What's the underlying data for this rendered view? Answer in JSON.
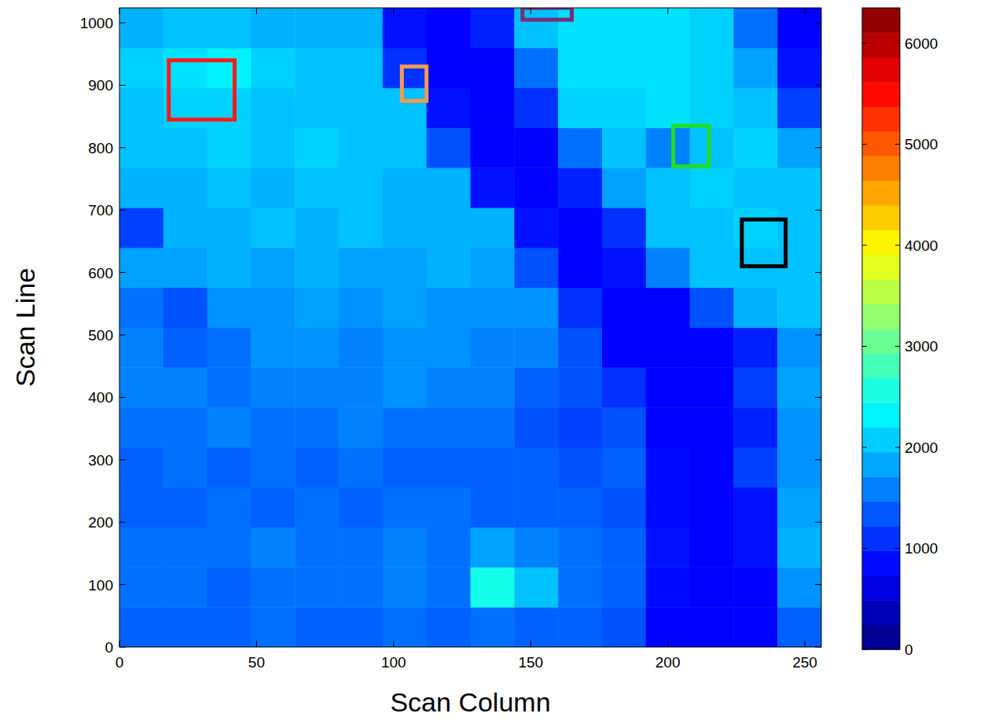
{
  "chart_data": {
    "type": "heatmap",
    "xlabel": "Scan Column",
    "ylabel": "Scan Line",
    "xlim": [
      0,
      256
    ],
    "ylim": [
      0,
      1024
    ],
    "xticks": [
      0,
      50,
      100,
      150,
      200,
      250
    ],
    "yticks": [
      0,
      100,
      200,
      300,
      400,
      500,
      600,
      700,
      800,
      900,
      1000
    ],
    "x_edges": [
      0,
      16,
      32,
      48,
      64,
      80,
      96,
      112,
      128,
      144,
      160,
      176,
      192,
      208,
      224,
      240,
      256
    ],
    "y_edges": [
      0,
      64,
      128,
      192,
      256,
      320,
      384,
      448,
      512,
      576,
      640,
      704,
      768,
      832,
      896,
      960,
      1024
    ],
    "cells": [
      [
        1400,
        1400,
        1400,
        1500,
        1400,
        1400,
        1500,
        1400,
        1500,
        1400,
        1400,
        1300,
        800,
        800,
        800,
        1400
      ],
      [
        1500,
        1500,
        1400,
        1500,
        1500,
        1500,
        1600,
        1500,
        2500,
        2000,
        1500,
        1400,
        850,
        800,
        800,
        1700
      ],
      [
        1500,
        1500,
        1500,
        1600,
        1500,
        1500,
        1600,
        1500,
        1800,
        1600,
        1500,
        1400,
        900,
        800,
        900,
        1900
      ],
      [
        1400,
        1400,
        1500,
        1400,
        1500,
        1400,
        1500,
        1500,
        1400,
        1400,
        1400,
        1300,
        850,
        800,
        900,
        1800
      ],
      [
        1400,
        1500,
        1400,
        1500,
        1400,
        1500,
        1400,
        1400,
        1400,
        1400,
        1300,
        1400,
        850,
        800,
        1200,
        1700
      ],
      [
        1500,
        1500,
        1600,
        1500,
        1500,
        1600,
        1500,
        1500,
        1500,
        1300,
        1200,
        1300,
        800,
        800,
        1000,
        1700
      ],
      [
        1600,
        1600,
        1500,
        1600,
        1600,
        1600,
        1700,
        1600,
        1600,
        1400,
        1300,
        1100,
        800,
        800,
        1200,
        1800
      ],
      [
        1600,
        1400,
        1500,
        1700,
        1700,
        1600,
        1700,
        1700,
        1600,
        1600,
        1300,
        800,
        800,
        800,
        1000,
        1700
      ],
      [
        1500,
        1300,
        1700,
        1700,
        1800,
        1700,
        1800,
        1700,
        1700,
        1700,
        1100,
        800,
        800,
        1300,
        1900,
        2000
      ],
      [
        1800,
        1800,
        1900,
        1800,
        1900,
        1800,
        1800,
        1900,
        1800,
        1300,
        800,
        900,
        1600,
        2000,
        2000,
        2000
      ],
      [
        1200,
        1900,
        1900,
        2000,
        1900,
        2000,
        1900,
        1900,
        1900,
        900,
        800,
        1100,
        2000,
        2000,
        2100,
        2000
      ],
      [
        1900,
        1900,
        2000,
        1900,
        2000,
        2000,
        1900,
        1900,
        900,
        800,
        1000,
        1800,
        2000,
        2100,
        2000,
        2000
      ],
      [
        2000,
        2000,
        2100,
        2000,
        2100,
        2000,
        2000,
        1300,
        800,
        800,
        1500,
        2000,
        1600,
        2000,
        2100,
        1800
      ],
      [
        2000,
        2100,
        2100,
        2000,
        2000,
        2000,
        2000,
        900,
        800,
        1100,
        2100,
        2100,
        2200,
        2100,
        2000,
        1200
      ],
      [
        2100,
        2200,
        2300,
        2100,
        2000,
        2000,
        1100,
        800,
        800,
        1500,
        2200,
        2200,
        2200,
        2100,
        1800,
        900
      ],
      [
        1900,
        2000,
        2000,
        1900,
        1900,
        1900,
        900,
        800,
        1000,
        2000,
        2200,
        2200,
        2200,
        2100,
        1500,
        800
      ]
    ],
    "colorbar": {
      "lim": [
        0,
        6350
      ],
      "ticks": [
        0,
        1000,
        2000,
        3000,
        4000,
        5000,
        6000
      ]
    },
    "regions": [
      {
        "color": "#ff1a1a",
        "x": [
          18,
          42
        ],
        "y": [
          845,
          940
        ]
      },
      {
        "color": "#f79a4f",
        "x": [
          103,
          112
        ],
        "y": [
          875,
          930
        ]
      },
      {
        "color": "#7b2b7b",
        "x": [
          147,
          165
        ],
        "y": [
          1005,
          1024
        ]
      },
      {
        "color": "#22dd22",
        "x": [
          202,
          215
        ],
        "y": [
          770,
          835
        ]
      },
      {
        "color": "#000000",
        "x": [
          227,
          243
        ],
        "y": [
          610,
          685
        ]
      }
    ]
  }
}
